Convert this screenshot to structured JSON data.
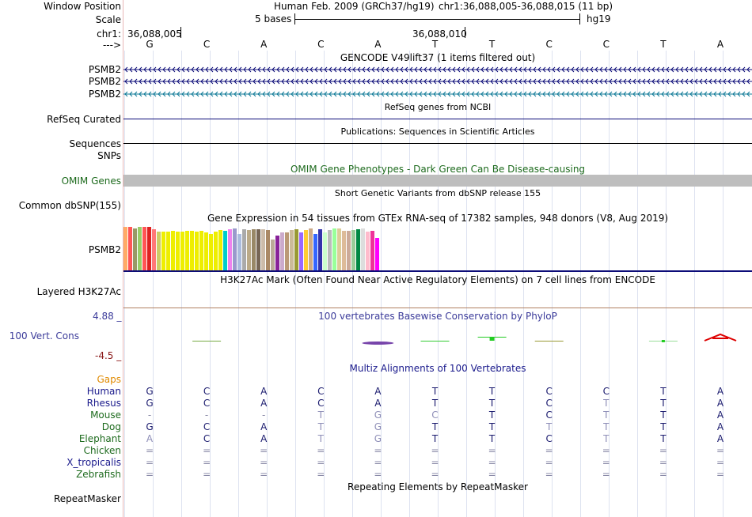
{
  "header": {
    "window_position_label": "Window Position",
    "assembly_text": "Human Feb. 2009 (GRCh37/hg19)",
    "position_text": "chr1:36,088,005-36,088,015 (11 bp)",
    "scale_label": "Scale",
    "scale_bar_text": "5 bases",
    "scale_db": "hg19",
    "chrom_label": "chr1:",
    "coord_left": "36,088,005",
    "coord_mid": "36,088,010",
    "strand_label": "--->",
    "bases": [
      "G",
      "C",
      "A",
      "C",
      "A",
      "T",
      "T",
      "C",
      "C",
      "T",
      "A"
    ]
  },
  "tracks": {
    "gencode": {
      "title": "GENCODE V49lift37 (1 items filtered out)",
      "labels": [
        "PSMB2",
        "PSMB2",
        "PSMB2"
      ],
      "colors": [
        "#0c0c78",
        "#0c0c78",
        "#0c7896"
      ]
    },
    "refseq": {
      "title": "RefSeq genes from NCBI",
      "label": "RefSeq Curated"
    },
    "publications": {
      "title": "Publications: Sequences in Scientific Articles",
      "label": "Sequences"
    },
    "snps_label": "SNPs",
    "omim": {
      "title": "OMIM Gene Phenotypes - Dark Green Can Be Disease-causing",
      "label": "OMIM Genes"
    },
    "dbsnp": {
      "title": "Short Genetic Variants from dbSNP release 155",
      "label": "Common dbSNP(155)"
    },
    "gtex": {
      "title": "Gene Expression in 54 tissues from GTEx RNA-seq of 17382 samples, 948 donors (V8, Aug 2019)",
      "label": "PSMB2"
    },
    "h3k27ac": {
      "title": "H3K27Ac Mark (Often Found Near Active Regulatory Elements) on 7 cell lines from ENCODE",
      "label": "Layered H3K27Ac"
    },
    "phylop": {
      "title": "100 vertebrates Basewise Conservation by PhyloP",
      "label": "100 Vert. Cons",
      "max": "4.88 _",
      "min": "-4.5 _"
    },
    "multiz": {
      "title": "Multiz Alignments of 100 Vertebrates",
      "gaps_label": "Gaps",
      "species": [
        {
          "name": "Human",
          "color": "#1a1a8c",
          "bases": [
            "G",
            "C",
            "A",
            "C",
            "A",
            "T",
            "T",
            "C",
            "C",
            "T",
            "A"
          ]
        },
        {
          "name": "Rhesus",
          "color": "#1a1a8c",
          "bases": [
            "G",
            "C",
            "A",
            "C",
            "A",
            "T",
            "T",
            "C",
            "T",
            "T",
            "A"
          ]
        },
        {
          "name": "Mouse",
          "color": "#1e6b1e",
          "bases": [
            "-",
            "-",
            "-",
            "T",
            "G",
            "C",
            "T",
            "C",
            "T",
            "T",
            "A"
          ]
        },
        {
          "name": "Dog",
          "color": "#1e6b1e",
          "bases": [
            "G",
            "C",
            "A",
            "T",
            "G",
            "T",
            "T",
            "T",
            "T",
            "T",
            "A"
          ]
        },
        {
          "name": "Elephant",
          "color": "#1e6b1e",
          "bases": [
            "A",
            "C",
            "A",
            "T",
            "G",
            "T",
            "T",
            "C",
            "T",
            "T",
            "A"
          ]
        },
        {
          "name": "Chicken",
          "color": "#1e6b1e",
          "bases": [
            "=",
            "=",
            "=",
            "=",
            "=",
            "=",
            "=",
            "=",
            "=",
            "=",
            "="
          ]
        },
        {
          "name": "X_tropicalis",
          "color": "#1a1a8c",
          "bases": [
            "=",
            "=",
            "=",
            "=",
            "=",
            "=",
            "=",
            "=",
            "=",
            "=",
            "="
          ]
        },
        {
          "name": "Zebrafish",
          "color": "#1e6b1e",
          "bases": [
            "=",
            "=",
            "=",
            "=",
            "=",
            "=",
            "=",
            "=",
            "=",
            "=",
            "="
          ]
        }
      ]
    },
    "repeatmasker": {
      "title": "Repeating Elements by RepeatMasker",
      "label": "RepeatMasker"
    }
  },
  "gtex_bars": {
    "values": [
      0.94,
      0.94,
      0.92,
      0.94,
      0.95,
      0.94,
      0.9,
      0.84,
      0.84,
      0.84,
      0.86,
      0.84,
      0.84,
      0.86,
      0.86,
      0.84,
      0.86,
      0.82,
      0.8,
      0.84,
      0.88,
      0.86,
      0.9,
      0.91,
      0.8,
      0.9,
      0.88,
      0.89,
      0.89,
      0.9,
      0.88,
      0.68,
      0.75,
      0.82,
      0.82,
      0.88,
      0.9,
      0.82,
      0.88,
      0.92,
      0.79,
      0.9,
      0.82,
      0.88,
      0.92,
      0.92,
      0.86,
      0.86,
      0.88,
      0.9,
      0.91,
      0.84,
      0.86,
      0.7
    ],
    "colors": [
      "#ffaa66",
      "#ff5555",
      "#999966",
      "#99cc66",
      "#ff5555",
      "#dd2222",
      "#ff7777",
      "#cccc66",
      "#eeee00",
      "#eeee00",
      "#eeee00",
      "#eeee00",
      "#eeee00",
      "#eeee00",
      "#eeee00",
      "#eeee00",
      "#eeee00",
      "#eeee00",
      "#eeee00",
      "#eeee00",
      "#eeee00",
      "#00cccc",
      "#ee82ee",
      "#9999cc",
      "#aabbdd",
      "#aaaaaa",
      "#bbaa88",
      "#998866",
      "#776655",
      "#ccbbaa",
      "#aa8866",
      "#bbaa99",
      "#882299",
      "#ccaacc",
      "#bb9977",
      "#ccbb99",
      "#999933",
      "#9966ff",
      "#ffcc33",
      "#ccaa88",
      "#3366ff",
      "#3333aa",
      "#ccffcc",
      "#bbbbbb",
      "#99ff99",
      "#ddcc99",
      "#ddbb99",
      "#ccaa99",
      "#99cc99",
      "#008844",
      "#dddddd",
      "#ffbbcc",
      "#ee3399",
      "#ff00ff"
    ]
  },
  "phylop_marks": [
    {
      "col": 1,
      "color": "#77aa44",
      "kind": "line"
    },
    {
      "col": 4,
      "color": "#7744aa",
      "kind": "neg"
    },
    {
      "col": 5,
      "color": "#33cc33",
      "kind": "line"
    },
    {
      "col": 6,
      "color": "#22cc22",
      "kind": "pos"
    },
    {
      "col": 7,
      "color": "#999933",
      "kind": "line"
    },
    {
      "col": 9,
      "color": "#22cc22",
      "kind": "dot"
    },
    {
      "col": 10,
      "color": "#dd0000",
      "kind": "letterA"
    }
  ]
}
